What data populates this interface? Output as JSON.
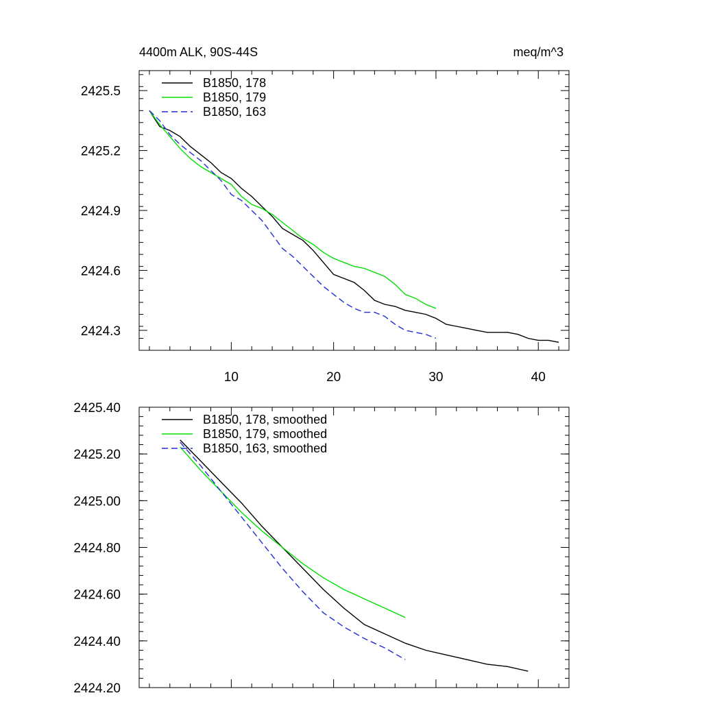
{
  "chart_data": [
    {
      "type": "line",
      "title_left": "4400m ALK, 90S-44S",
      "title_right": "meq/m^3",
      "xlim": [
        1,
        43
      ],
      "ylim": [
        2424.2,
        2425.6
      ],
      "x_ticks": [
        10,
        20,
        30,
        40
      ],
      "x_tick_labels": [
        "10",
        "20",
        "30",
        "40"
      ],
      "y_ticks": [
        2424.3,
        2424.6,
        2424.9,
        2425.2,
        2425.5
      ],
      "y_tick_labels": [
        "2424.3",
        "2424.6",
        "2424.9",
        "2425.2",
        "2425.5"
      ],
      "legend_position": "top-left",
      "series": [
        {
          "name": "B1850, 178",
          "color": "#000000",
          "dash": "solid",
          "x": [
            2,
            3,
            4,
            5,
            6,
            7,
            8,
            9,
            10,
            11,
            12,
            13,
            14,
            15,
            16,
            17,
            18,
            19,
            20,
            21,
            22,
            23,
            24,
            25,
            26,
            27,
            28,
            29,
            30,
            31,
            32,
            33,
            34,
            35,
            36,
            37,
            38,
            39,
            40,
            41,
            42
          ],
          "y": [
            2425.4,
            2425.32,
            2425.3,
            2425.27,
            2425.22,
            2425.18,
            2425.14,
            2425.09,
            2425.06,
            2425.01,
            2424.97,
            2424.92,
            2424.87,
            2424.81,
            2424.78,
            2424.75,
            2424.7,
            2424.64,
            2424.58,
            2424.56,
            2424.54,
            2424.5,
            2424.45,
            2424.43,
            2424.42,
            2424.4,
            2424.39,
            2424.38,
            2424.36,
            2424.33,
            2424.32,
            2424.31,
            2424.3,
            2424.29,
            2424.29,
            2424.29,
            2424.28,
            2424.26,
            2424.25,
            2424.25,
            2424.24
          ]
        },
        {
          "name": "B1850, 179",
          "color": "#00e000",
          "dash": "solid",
          "x": [
            2,
            3,
            4,
            5,
            6,
            7,
            8,
            9,
            10,
            11,
            12,
            13,
            14,
            15,
            16,
            17,
            18,
            19,
            20,
            21,
            22,
            23,
            24,
            25,
            26,
            27,
            28,
            29,
            30
          ],
          "y": [
            2425.4,
            2425.33,
            2425.27,
            2425.21,
            2425.16,
            2425.12,
            2425.09,
            2425.06,
            2425.03,
            2424.97,
            2424.93,
            2424.91,
            2424.88,
            2424.84,
            2424.8,
            2424.76,
            2424.73,
            2424.69,
            2424.66,
            2424.64,
            2424.62,
            2424.61,
            2424.59,
            2424.57,
            2424.53,
            2424.48,
            2424.46,
            2424.43,
            2424.41
          ]
        },
        {
          "name": "B1850, 163",
          "color": "#1f2bd6",
          "dash": "dashed",
          "x": [
            2,
            3,
            4,
            5,
            6,
            7,
            8,
            9,
            10,
            11,
            12,
            13,
            14,
            15,
            16,
            17,
            18,
            19,
            20,
            21,
            22,
            23,
            24,
            25,
            26,
            27,
            28,
            29,
            30
          ],
          "y": [
            2425.4,
            2425.35,
            2425.28,
            2425.23,
            2425.19,
            2425.15,
            2425.1,
            2425.05,
            2424.98,
            2424.95,
            2424.9,
            2424.85,
            2424.78,
            2424.71,
            2424.67,
            2424.62,
            2424.57,
            2424.52,
            2424.48,
            2424.44,
            2424.41,
            2424.39,
            2424.39,
            2424.37,
            2424.33,
            2424.3,
            2424.29,
            2424.28,
            2424.26
          ]
        }
      ]
    },
    {
      "type": "line",
      "xlim": [
        1,
        43
      ],
      "ylim": [
        2424.2,
        2425.4
      ],
      "x_ticks": [
        10,
        20,
        30,
        40
      ],
      "y_ticks": [
        2424.2,
        2424.4,
        2424.6,
        2424.8,
        2425.0,
        2425.2,
        2425.4
      ],
      "y_tick_labels": [
        "2424.20",
        "2424.40",
        "2424.60",
        "2424.80",
        "2425.00",
        "2425.20",
        "2425.40"
      ],
      "legend_position": "top-left",
      "series": [
        {
          "name": "B1850, 178, smoothed",
          "color": "#000000",
          "dash": "solid",
          "x": [
            5,
            7,
            9,
            11,
            13,
            15,
            17,
            19,
            21,
            23,
            25,
            27,
            29,
            31,
            33,
            35,
            37,
            39
          ],
          "y": [
            2425.26,
            2425.17,
            2425.08,
            2424.99,
            2424.89,
            2424.8,
            2424.71,
            2424.62,
            2424.54,
            2424.47,
            2424.43,
            2424.39,
            2424.36,
            2424.34,
            2424.32,
            2424.3,
            2424.29,
            2424.27
          ]
        },
        {
          "name": "B1850, 179, smoothed",
          "color": "#00e000",
          "dash": "solid",
          "x": [
            5,
            7,
            9,
            11,
            13,
            15,
            17,
            19,
            21,
            23,
            25,
            27
          ],
          "y": [
            2425.23,
            2425.13,
            2425.04,
            2424.95,
            2424.87,
            2424.8,
            2424.73,
            2424.67,
            2424.62,
            2424.58,
            2424.54,
            2424.5
          ]
        },
        {
          "name": "B1850, 163, smoothed",
          "color": "#1f2bd6",
          "dash": "dashed",
          "x": [
            5,
            7,
            9,
            11,
            13,
            15,
            17,
            19,
            21,
            23,
            25,
            27
          ],
          "y": [
            2425.25,
            2425.15,
            2425.04,
            2424.93,
            2424.82,
            2424.71,
            2424.61,
            2424.52,
            2424.46,
            2424.41,
            2424.37,
            2424.32
          ]
        }
      ]
    }
  ]
}
